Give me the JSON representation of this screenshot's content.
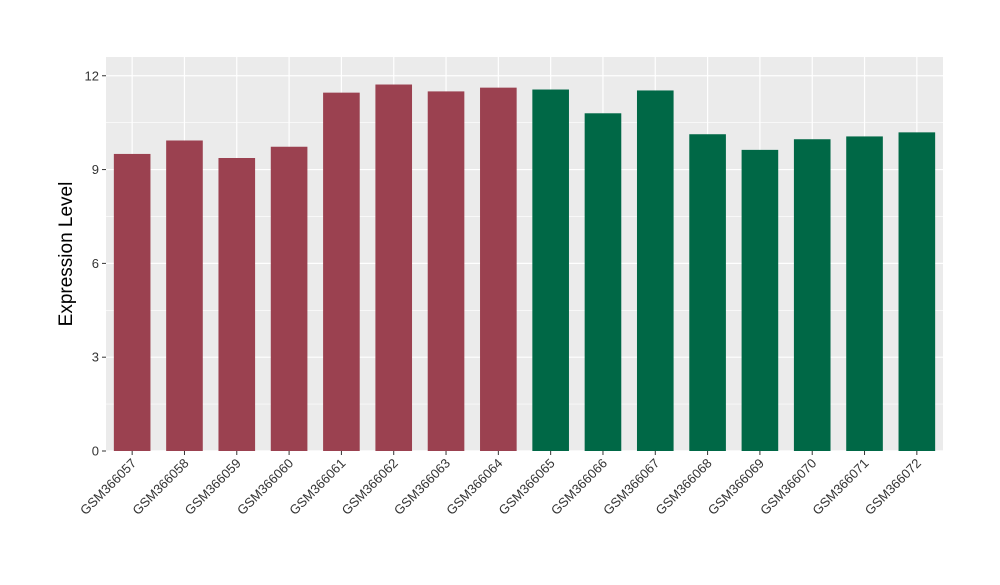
{
  "chart_data": {
    "type": "bar",
    "title": "",
    "xlabel": "",
    "ylabel": "Expression Level",
    "ylim": [
      0,
      12.6
    ],
    "yticks": [
      0,
      3,
      6,
      9,
      12
    ],
    "ytick_labels": [
      "0",
      "3",
      "6",
      "9",
      "12"
    ],
    "grid": true,
    "categories": [
      "GSM366057",
      "GSM366058",
      "GSM366059",
      "GSM366060",
      "GSM366061",
      "GSM366062",
      "GSM366063",
      "GSM366064",
      "GSM366065",
      "GSM366066",
      "GSM366067",
      "GSM366068",
      "GSM366069",
      "GSM366070",
      "GSM366071",
      "GSM366072"
    ],
    "values": [
      9.5,
      9.93,
      9.37,
      9.73,
      11.46,
      11.72,
      11.5,
      11.62,
      11.56,
      10.8,
      11.53,
      10.13,
      9.63,
      9.97,
      10.06,
      10.19
    ],
    "bar_colors": [
      "#9b4150",
      "#9b4150",
      "#9b4150",
      "#9b4150",
      "#9b4150",
      "#9b4150",
      "#9b4150",
      "#9b4150",
      "#006846",
      "#006846",
      "#006846",
      "#006846",
      "#006846",
      "#006846",
      "#006846",
      "#006846"
    ]
  },
  "colors": {
    "panel_background": "#ebebeb",
    "gridline": "#ffffff",
    "group_1": "#9b4150",
    "group_2": "#006846"
  }
}
